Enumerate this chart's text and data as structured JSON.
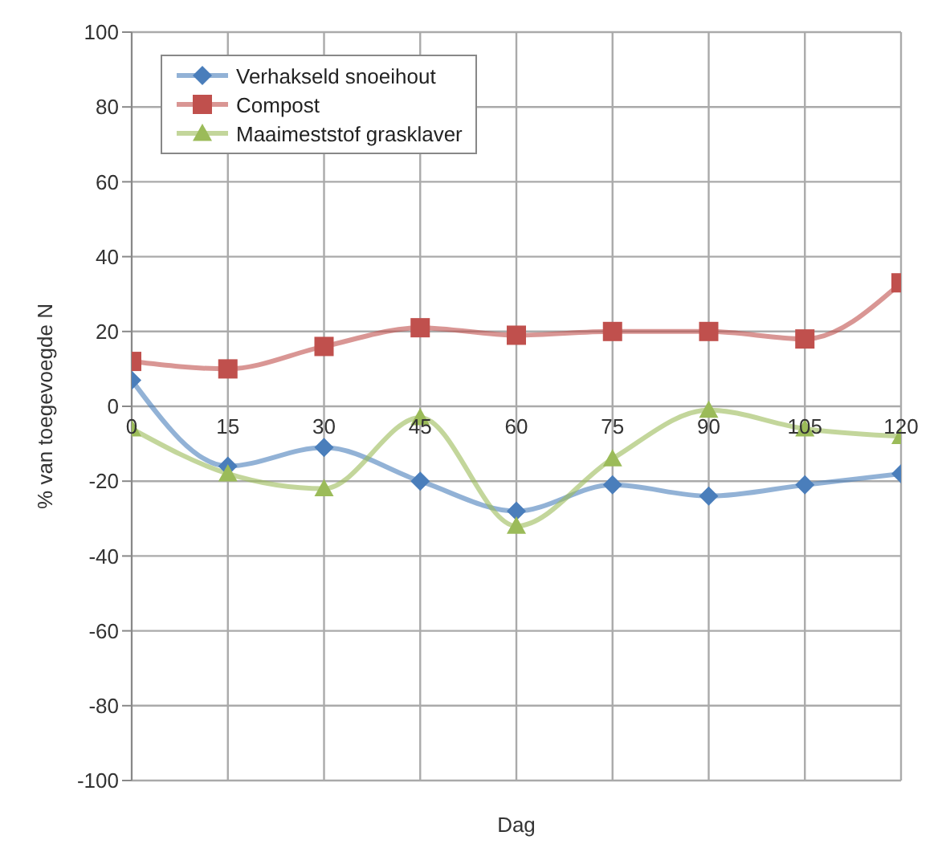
{
  "chart_data": {
    "type": "line",
    "xlabel": "Dag",
    "ylabel": "% van toegevoegde N",
    "x": [
      0,
      15,
      30,
      45,
      60,
      75,
      90,
      105,
      120
    ],
    "xlim": [
      0,
      120
    ],
    "xticks": [
      0,
      15,
      30,
      45,
      60,
      75,
      90,
      105,
      120
    ],
    "ylim": [
      -100,
      100
    ],
    "yticks": [
      -100,
      -80,
      -60,
      -40,
      -20,
      0,
      20,
      40,
      60,
      80,
      100
    ],
    "grid": true,
    "legend": "top left",
    "line_style": "solid",
    "series": [
      {
        "name": "Verhakseld snoeihout",
        "color": "#4a7ebb",
        "marker": "diamond",
        "values": [
          7,
          -16,
          -11,
          -20,
          -28,
          -21,
          -24,
          -21,
          -18
        ]
      },
      {
        "name": "Compost",
        "color": "#c0504d",
        "marker": "square",
        "values": [
          12,
          10,
          16,
          21,
          19,
          20,
          20,
          18,
          33
        ]
      },
      {
        "name": "Maaimeststof grasklaver",
        "color": "#9bbb59",
        "marker": "triangle",
        "values": [
          -6,
          -18,
          -22,
          -3,
          -32,
          -14,
          -1,
          -6,
          -8
        ]
      }
    ]
  }
}
